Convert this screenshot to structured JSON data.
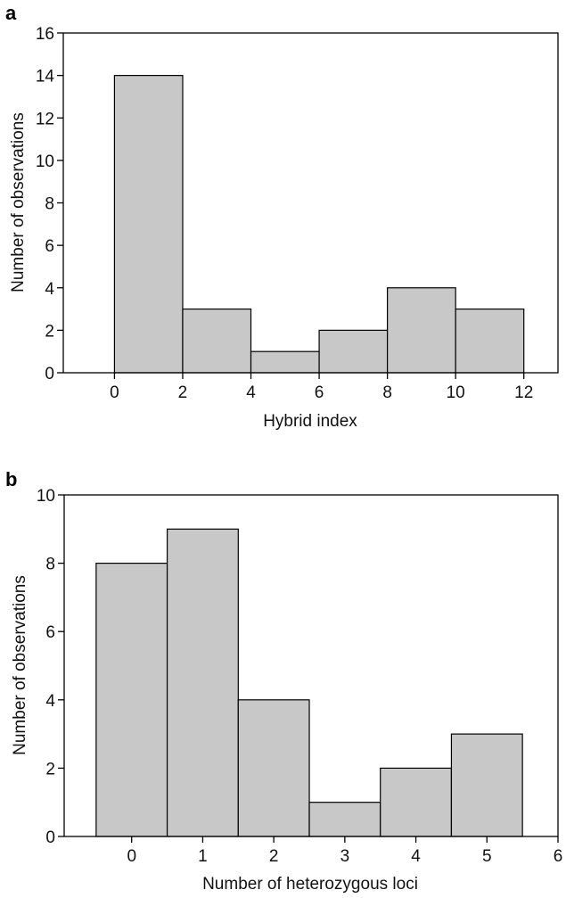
{
  "chart_data": [
    {
      "type": "bar",
      "panel": "a",
      "xlabel": "Hybrid index",
      "ylabel": "Number of observations",
      "xlim": [
        -1.5,
        13
      ],
      "ylim": [
        0,
        16
      ],
      "xticks": [
        0,
        2,
        4,
        6,
        8,
        10,
        12
      ],
      "yticks": [
        0,
        2,
        4,
        6,
        8,
        10,
        12,
        14,
        16
      ],
      "bins": [
        {
          "x0": 0,
          "x1": 2,
          "value": 14
        },
        {
          "x0": 2,
          "x1": 4,
          "value": 3
        },
        {
          "x0": 4,
          "x1": 6,
          "value": 1
        },
        {
          "x0": 6,
          "x1": 8,
          "value": 2
        },
        {
          "x0": 8,
          "x1": 10,
          "value": 4
        },
        {
          "x0": 10,
          "x1": 12,
          "value": 3
        }
      ],
      "bar_color": "#c8c8c8"
    },
    {
      "type": "bar",
      "panel": "b",
      "xlabel": "Number of heterozygous loci",
      "ylabel": "Number of observations",
      "xlim": [
        -0.95,
        6
      ],
      "ylim": [
        0,
        10
      ],
      "xticks": [
        0,
        1,
        2,
        3,
        4,
        5,
        6
      ],
      "yticks": [
        0,
        2,
        4,
        6,
        8,
        10
      ],
      "bins": [
        {
          "x0": -0.5,
          "x1": 0.5,
          "value": 8
        },
        {
          "x0": 0.5,
          "x1": 1.5,
          "value": 9
        },
        {
          "x0": 1.5,
          "x1": 2.5,
          "value": 4
        },
        {
          "x0": 2.5,
          "x1": 3.5,
          "value": 1
        },
        {
          "x0": 3.5,
          "x1": 4.5,
          "value": 2
        },
        {
          "x0": 4.5,
          "x1": 5.5,
          "value": 3
        }
      ],
      "bar_color": "#c8c8c8"
    }
  ]
}
